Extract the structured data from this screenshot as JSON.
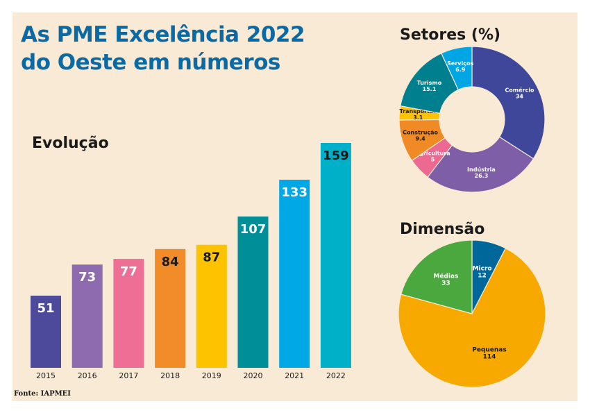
{
  "title_lines": [
    "As PME Excelência 2022",
    "do Oeste em números"
  ],
  "source": "Fonte: IAPMEI",
  "chart_data": [
    {
      "type": "bar",
      "title": "Evolução",
      "categories": [
        "2015",
        "2016",
        "2017",
        "2018",
        "2019",
        "2020",
        "2021",
        "2022"
      ],
      "values": [
        51,
        73,
        77,
        84,
        87,
        107,
        133,
        159
      ],
      "colors": [
        "#4e4a9b",
        "#8e6bae",
        "#ee6e95",
        "#f28c28",
        "#fdc300",
        "#008f99",
        "#00a8e6",
        "#00afc8"
      ],
      "label_colors": [
        "#ffffff",
        "#ffffff",
        "#ffffff",
        "#1a1a1a",
        "#1a1a1a",
        "#ffffff",
        "#ffffff",
        "#1a1a1a"
      ],
      "ylim": [
        0,
        159
      ],
      "grid": false
    },
    {
      "type": "pie",
      "variant": "donut",
      "title": "Setores (%)",
      "labels": [
        "Comércio",
        "Indústria",
        "Agricultura",
        "Construção",
        "Transportes",
        "Turismo",
        "Serviços"
      ],
      "values": [
        34,
        26.3,
        5,
        9.4,
        3.1,
        15.1,
        6.9
      ],
      "colors": [
        "#3e4799",
        "#7f5ea8",
        "#ec6a91",
        "#f08a24",
        "#fdc300",
        "#00808f",
        "#00a6e3"
      ],
      "label_colors": [
        "#ffffff",
        "#ffffff",
        "#ffffff",
        "#1a1a1a",
        "#1a1a1a",
        "#ffffff",
        "#ffffff"
      ]
    },
    {
      "type": "pie",
      "title": "Dimensão",
      "labels": [
        "Micro",
        "Pequenas",
        "Médias"
      ],
      "values": [
        12,
        114,
        33
      ],
      "colors": [
        "#00679b",
        "#f7a900",
        "#4aa83f"
      ],
      "label_colors": [
        "#ffffff",
        "#1a1a1a",
        "#ffffff"
      ]
    }
  ]
}
